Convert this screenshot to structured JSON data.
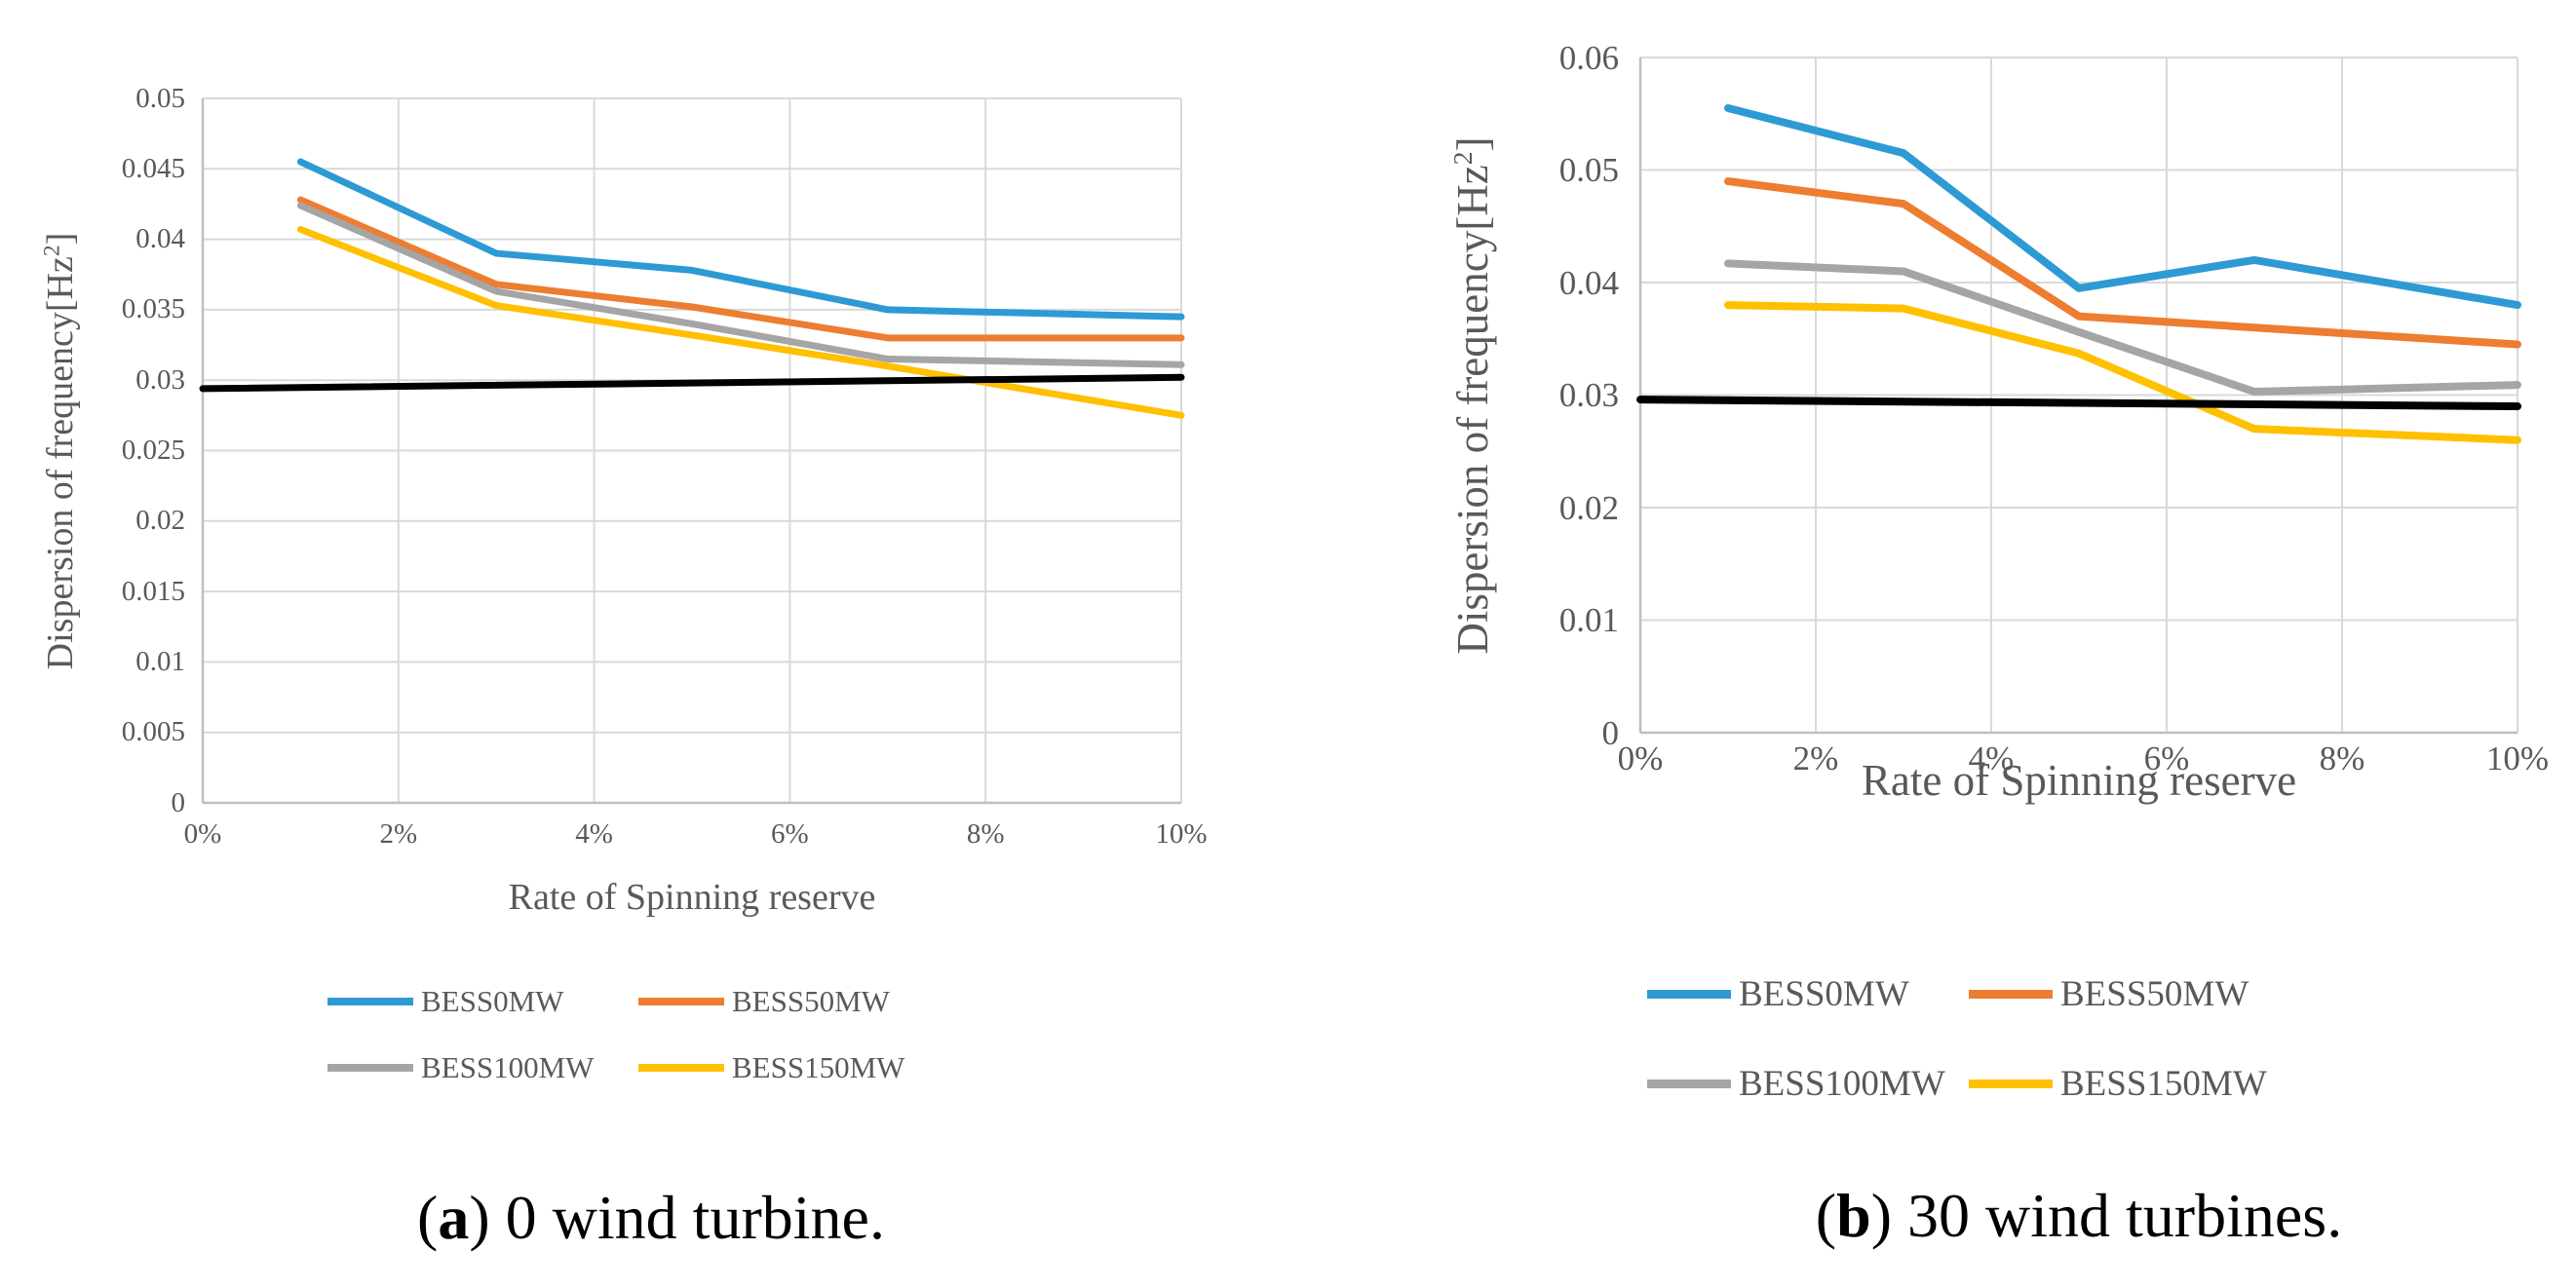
{
  "figure": {
    "panels": [
      {
        "caption": {
          "paren_open": "(",
          "letter": "a",
          "paren_close": ")",
          "text": " 0 wind turbine."
        },
        "y_axis": {
          "title_pre": "Dispersion of frequency[Hz",
          "title_sup": "2",
          "title_post": "]",
          "ticks": [
            "0.05",
            "0.045",
            "0.04",
            "0.035",
            "0.03",
            "0.025",
            "0.02",
            "0.015",
            "0.01",
            "0.005",
            "0"
          ]
        },
        "x_axis": {
          "title": "Rate of Spinning reserve",
          "ticks": [
            "0%",
            "2%",
            "4%",
            "6%",
            "8%",
            "10%"
          ]
        },
        "legend": [
          {
            "label": "BESS0MW"
          },
          {
            "label": "BESS50MW"
          },
          {
            "label": "BESS100MW"
          },
          {
            "label": "BESS150MW"
          }
        ]
      },
      {
        "caption": {
          "paren_open": "(",
          "letter": "b",
          "paren_close": ")",
          "text": " 30 wind turbines."
        },
        "y_axis": {
          "title_pre": "Dispersion of frequency[Hz",
          "title_sup": "2",
          "title_post": "]",
          "ticks": [
            "0.06",
            "0.05",
            "0.04",
            "0.03",
            "0.02",
            "0.01",
            "0"
          ]
        },
        "x_axis": {
          "title": "Rate of Spinning reserve",
          "ticks": [
            "0%",
            "2%",
            "4%",
            "6%",
            "8%",
            "10%"
          ]
        },
        "legend": [
          {
            "label": "BESS0MW"
          },
          {
            "label": "BESS50MW"
          },
          {
            "label": "BESS100MW"
          },
          {
            "label": "BESS150MW"
          }
        ]
      }
    ]
  },
  "chart_data": [
    {
      "type": "line",
      "title": "(a) 0 wind turbine.",
      "xlabel": "Rate of Spinning reserve",
      "ylabel": "Dispersion of frequency[Hz2]",
      "xlim_percent": [
        0,
        10
      ],
      "ylim": [
        0,
        0.05
      ],
      "y_step": 0.005,
      "x_tick_step_percent": 2,
      "grid": true,
      "legend_position": "bottom",
      "x_percent": [
        1,
        3,
        5,
        7,
        10
      ],
      "series": [
        {
          "name": "BESS0MW",
          "color": "#2E9AD4",
          "values": [
            0.0455,
            0.039,
            0.0378,
            0.035,
            0.0345
          ]
        },
        {
          "name": "BESS50MW",
          "color": "#ED7D31",
          "values": [
            0.0428,
            0.0368,
            0.0352,
            0.033,
            0.033
          ]
        },
        {
          "name": "BESS100MW",
          "color": "#A5A5A5",
          "values": [
            0.0424,
            0.0363,
            0.034,
            0.0315,
            0.0311
          ]
        },
        {
          "name": "BESS150MW",
          "color": "#FFC000",
          "values": [
            0.0407,
            0.0353,
            0.0332,
            0.031,
            0.0275
          ]
        }
      ],
      "black_line": {
        "color": "#000000",
        "x_percent": [
          0,
          10
        ],
        "values": [
          0.0294,
          0.0302
        ]
      }
    },
    {
      "type": "line",
      "title": "(b) 30 wind turbines.",
      "xlabel": "Rate of Spinning reserve",
      "ylabel": "Dispersion of frequency[Hz2]",
      "xlim_percent": [
        0,
        10
      ],
      "ylim": [
        0,
        0.06
      ],
      "y_step": 0.01,
      "x_tick_step_percent": 2,
      "grid": true,
      "legend_position": "bottom",
      "x_percent": [
        1,
        3,
        5,
        7,
        10
      ],
      "series": [
        {
          "name": "BESS0MW",
          "color": "#2E9AD4",
          "values": [
            0.0555,
            0.0515,
            0.0395,
            0.042,
            0.038
          ]
        },
        {
          "name": "BESS50MW",
          "color": "#ED7D31",
          "values": [
            0.049,
            0.047,
            0.037,
            0.036,
            0.0345
          ]
        },
        {
          "name": "BESS100MW",
          "color": "#A5A5A5",
          "values": [
            0.0417,
            0.041,
            0.0356,
            0.0303,
            0.0309
          ]
        },
        {
          "name": "BESS150MW",
          "color": "#FFC000",
          "values": [
            0.038,
            0.0377,
            0.0337,
            0.027,
            0.026
          ]
        }
      ],
      "black_line": {
        "color": "#000000",
        "x_percent": [
          0,
          10
        ],
        "values": [
          0.0296,
          0.029
        ]
      }
    }
  ],
  "colors": {
    "grid": "#D9D9D9",
    "axis": "#BFBFBF",
    "tick_text": "#595959",
    "caption_text": "#000000"
  }
}
